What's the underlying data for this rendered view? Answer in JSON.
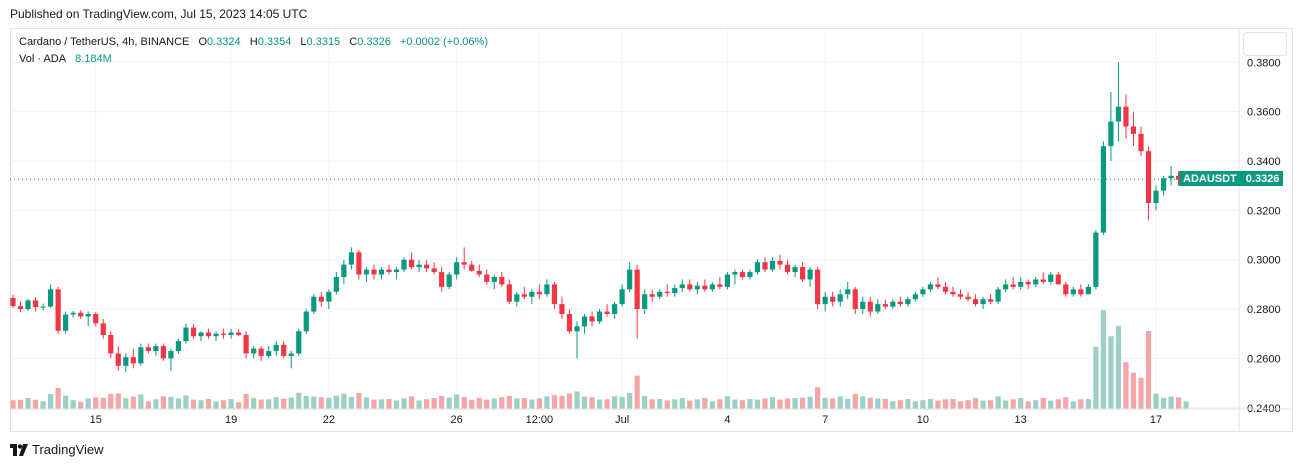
{
  "published": "Published on TradingView.com, Jul 15, 2023 14:05 UTC",
  "legend": {
    "symbol": "Cardano / TetherUS, 4h, BINANCE",
    "o_label": "O",
    "o_value": "0.3324",
    "h_label": "H",
    "h_value": "0.3354",
    "l_label": "L",
    "l_value": "0.3315",
    "c_label": "C",
    "c_value": "0.3326",
    "change": "+0.0002 (+0.06%)",
    "vol_label": "Vol · ADA",
    "vol_value": "8.184M"
  },
  "price_badge": {
    "ticker": "ADAUSDT",
    "price": "0.3326"
  },
  "brand": "TradingView",
  "colors": {
    "up": "#089981",
    "down": "#f23645",
    "up_volume": "#9bd0c6",
    "down_volume": "#f3a5a8",
    "grid": "#f0f3fa",
    "axis_text": "#131722"
  },
  "chart_data": {
    "type": "candlestick",
    "symbol": "ADAUSDT",
    "interval": "4h",
    "y_axis": {
      "ticks": [
        "0.2400",
        "0.2600",
        "0.2800",
        "0.3000",
        "0.3200",
        "0.3400",
        "0.3600",
        "0.3800"
      ],
      "range": [
        0.2395,
        0.3935
      ]
    },
    "x_axis": {
      "ticks": [
        {
          "label": "15",
          "index": 11
        },
        {
          "label": "19",
          "index": 29
        },
        {
          "label": "22",
          "index": 42
        },
        {
          "label": "26",
          "index": 59
        },
        {
          "label": "12:00",
          "index": 70
        },
        {
          "label": "Jul",
          "index": 81
        },
        {
          "label": "4",
          "index": 95
        },
        {
          "label": "7",
          "index": 108
        },
        {
          "label": "10",
          "index": 121
        },
        {
          "label": "13",
          "index": 134
        },
        {
          "label": "17",
          "index": 152
        }
      ],
      "bars_total": 153
    },
    "last_price": 0.3326,
    "candles_ohlc": [
      [
        0.2845,
        0.2858,
        0.2805,
        0.2812
      ],
      [
        0.2812,
        0.2832,
        0.2788,
        0.28
      ],
      [
        0.28,
        0.2842,
        0.2792,
        0.2835
      ],
      [
        0.2835,
        0.2848,
        0.279,
        0.2808
      ],
      [
        0.2808,
        0.2822,
        0.2795,
        0.281
      ],
      [
        0.281,
        0.29,
        0.2805,
        0.288
      ],
      [
        0.288,
        0.289,
        0.27,
        0.2712
      ],
      [
        0.2712,
        0.279,
        0.27,
        0.2778
      ],
      [
        0.2778,
        0.2792,
        0.2765,
        0.2785
      ],
      [
        0.2785,
        0.2795,
        0.276,
        0.277
      ],
      [
        0.277,
        0.279,
        0.273,
        0.278
      ],
      [
        0.278,
        0.2788,
        0.273,
        0.2742
      ],
      [
        0.2742,
        0.276,
        0.268,
        0.2695
      ],
      [
        0.2695,
        0.271,
        0.26,
        0.262
      ],
      [
        0.262,
        0.265,
        0.255,
        0.257
      ],
      [
        0.257,
        0.262,
        0.2545,
        0.2605
      ],
      [
        0.2605,
        0.264,
        0.256,
        0.258
      ],
      [
        0.258,
        0.266,
        0.257,
        0.2645
      ],
      [
        0.2645,
        0.266,
        0.262,
        0.263
      ],
      [
        0.263,
        0.266,
        0.261,
        0.265
      ],
      [
        0.265,
        0.266,
        0.259,
        0.26
      ],
      [
        0.26,
        0.264,
        0.255,
        0.263
      ],
      [
        0.263,
        0.268,
        0.262,
        0.267
      ],
      [
        0.267,
        0.274,
        0.266,
        0.2725
      ],
      [
        0.2725,
        0.274,
        0.268,
        0.269
      ],
      [
        0.269,
        0.271,
        0.267,
        0.2705
      ],
      [
        0.2705,
        0.272,
        0.268,
        0.269
      ],
      [
        0.269,
        0.271,
        0.267,
        0.27
      ],
      [
        0.27,
        0.272,
        0.268,
        0.2695
      ],
      [
        0.2695,
        0.272,
        0.268,
        0.2705
      ],
      [
        0.2705,
        0.272,
        0.269,
        0.2695
      ],
      [
        0.2695,
        0.271,
        0.26,
        0.262
      ],
      [
        0.262,
        0.265,
        0.26,
        0.264
      ],
      [
        0.264,
        0.265,
        0.259,
        0.261
      ],
      [
        0.261,
        0.265,
        0.26,
        0.263
      ],
      [
        0.263,
        0.267,
        0.261,
        0.2655
      ],
      [
        0.2655,
        0.267,
        0.26,
        0.261
      ],
      [
        0.261,
        0.263,
        0.256,
        0.262
      ],
      [
        0.262,
        0.272,
        0.261,
        0.271
      ],
      [
        0.271,
        0.28,
        0.27,
        0.279
      ],
      [
        0.279,
        0.286,
        0.278,
        0.285
      ],
      [
        0.285,
        0.287,
        0.281,
        0.283
      ],
      [
        0.283,
        0.288,
        0.28,
        0.287
      ],
      [
        0.287,
        0.295,
        0.286,
        0.293
      ],
      [
        0.293,
        0.3,
        0.29,
        0.298
      ],
      [
        0.298,
        0.305,
        0.296,
        0.303
      ],
      [
        0.303,
        0.304,
        0.292,
        0.294
      ],
      [
        0.294,
        0.297,
        0.291,
        0.296
      ],
      [
        0.296,
        0.298,
        0.292,
        0.294
      ],
      [
        0.294,
        0.297,
        0.292,
        0.296
      ],
      [
        0.296,
        0.298,
        0.294,
        0.295
      ],
      [
        0.295,
        0.297,
        0.292,
        0.296
      ],
      [
        0.296,
        0.301,
        0.295,
        0.3
      ],
      [
        0.3,
        0.303,
        0.296,
        0.297
      ],
      [
        0.297,
        0.3,
        0.295,
        0.298
      ],
      [
        0.298,
        0.3,
        0.295,
        0.2965
      ],
      [
        0.2965,
        0.299,
        0.294,
        0.295
      ],
      [
        0.295,
        0.297,
        0.287,
        0.289
      ],
      [
        0.289,
        0.295,
        0.288,
        0.294
      ],
      [
        0.294,
        0.301,
        0.292,
        0.299
      ],
      [
        0.299,
        0.305,
        0.296,
        0.298
      ],
      [
        0.298,
        0.2995,
        0.295,
        0.2955
      ],
      [
        0.2955,
        0.298,
        0.293,
        0.294
      ],
      [
        0.294,
        0.296,
        0.29,
        0.291
      ],
      [
        0.291,
        0.294,
        0.288,
        0.293
      ],
      [
        0.293,
        0.295,
        0.289,
        0.29
      ],
      [
        0.29,
        0.292,
        0.282,
        0.283
      ],
      [
        0.283,
        0.287,
        0.281,
        0.286
      ],
      [
        0.286,
        0.289,
        0.284,
        0.285
      ],
      [
        0.285,
        0.288,
        0.282,
        0.287
      ],
      [
        0.287,
        0.29,
        0.284,
        0.286
      ],
      [
        0.286,
        0.292,
        0.285,
        0.29
      ],
      [
        0.29,
        0.291,
        0.28,
        0.282
      ],
      [
        0.282,
        0.285,
        0.276,
        0.278
      ],
      [
        0.278,
        0.28,
        0.27,
        0.271
      ],
      [
        0.271,
        0.275,
        0.26,
        0.273
      ],
      [
        0.273,
        0.278,
        0.27,
        0.277
      ],
      [
        0.277,
        0.279,
        0.273,
        0.275
      ],
      [
        0.275,
        0.28,
        0.274,
        0.279
      ],
      [
        0.279,
        0.282,
        0.277,
        0.278
      ],
      [
        0.278,
        0.283,
        0.276,
        0.282
      ],
      [
        0.282,
        0.29,
        0.281,
        0.288
      ],
      [
        0.288,
        0.299,
        0.287,
        0.296
      ],
      [
        0.296,
        0.298,
        0.268,
        0.28
      ],
      [
        0.28,
        0.288,
        0.278,
        0.286
      ],
      [
        0.286,
        0.288,
        0.283,
        0.285
      ],
      [
        0.285,
        0.288,
        0.284,
        0.287
      ],
      [
        0.287,
        0.29,
        0.285,
        0.2865
      ],
      [
        0.2865,
        0.29,
        0.285,
        0.2885
      ],
      [
        0.2885,
        0.292,
        0.287,
        0.29
      ],
      [
        0.29,
        0.292,
        0.287,
        0.288
      ],
      [
        0.288,
        0.291,
        0.286,
        0.2895
      ],
      [
        0.2895,
        0.292,
        0.287,
        0.288
      ],
      [
        0.288,
        0.291,
        0.287,
        0.29
      ],
      [
        0.29,
        0.293,
        0.288,
        0.289
      ],
      [
        0.289,
        0.295,
        0.288,
        0.294
      ],
      [
        0.294,
        0.296,
        0.29,
        0.295
      ],
      [
        0.295,
        0.296,
        0.292,
        0.293
      ],
      [
        0.293,
        0.296,
        0.292,
        0.295
      ],
      [
        0.295,
        0.3,
        0.294,
        0.299
      ],
      [
        0.299,
        0.301,
        0.295,
        0.296
      ],
      [
        0.296,
        0.301,
        0.295,
        0.2995
      ],
      [
        0.2995,
        0.302,
        0.296,
        0.298
      ],
      [
        0.298,
        0.3,
        0.294,
        0.295
      ],
      [
        0.295,
        0.298,
        0.293,
        0.297
      ],
      [
        0.297,
        0.299,
        0.291,
        0.292
      ],
      [
        0.292,
        0.297,
        0.289,
        0.296
      ],
      [
        0.296,
        0.297,
        0.28,
        0.282
      ],
      [
        0.282,
        0.287,
        0.279,
        0.285
      ],
      [
        0.285,
        0.287,
        0.281,
        0.283
      ],
      [
        0.283,
        0.288,
        0.281,
        0.286
      ],
      [
        0.286,
        0.291,
        0.284,
        0.288
      ],
      [
        0.288,
        0.289,
        0.278,
        0.28
      ],
      [
        0.28,
        0.285,
        0.278,
        0.283
      ],
      [
        0.283,
        0.285,
        0.277,
        0.279
      ],
      [
        0.279,
        0.284,
        0.278,
        0.282
      ],
      [
        0.282,
        0.284,
        0.28,
        0.281
      ],
      [
        0.281,
        0.284,
        0.28,
        0.283
      ],
      [
        0.283,
        0.285,
        0.281,
        0.282
      ],
      [
        0.282,
        0.285,
        0.281,
        0.284
      ],
      [
        0.284,
        0.287,
        0.283,
        0.286
      ],
      [
        0.286,
        0.289,
        0.285,
        0.288
      ],
      [
        0.288,
        0.291,
        0.287,
        0.29
      ],
      [
        0.29,
        0.293,
        0.288,
        0.289
      ],
      [
        0.289,
        0.291,
        0.286,
        0.287
      ],
      [
        0.287,
        0.289,
        0.285,
        0.286
      ],
      [
        0.286,
        0.288,
        0.284,
        0.285
      ],
      [
        0.285,
        0.287,
        0.283,
        0.284
      ],
      [
        0.284,
        0.286,
        0.281,
        0.282
      ],
      [
        0.282,
        0.285,
        0.28,
        0.284
      ],
      [
        0.284,
        0.286,
        0.282,
        0.283
      ],
      [
        0.283,
        0.289,
        0.282,
        0.288
      ],
      [
        0.288,
        0.292,
        0.287,
        0.29
      ],
      [
        0.29,
        0.293,
        0.288,
        0.289
      ],
      [
        0.289,
        0.293,
        0.288,
        0.291
      ],
      [
        0.291,
        0.292,
        0.288,
        0.29
      ],
      [
        0.29,
        0.293,
        0.289,
        0.292
      ],
      [
        0.292,
        0.295,
        0.29,
        0.291
      ],
      [
        0.291,
        0.295,
        0.29,
        0.294
      ],
      [
        0.294,
        0.295,
        0.29,
        0.29
      ],
      [
        0.29,
        0.291,
        0.285,
        0.286
      ],
      [
        0.286,
        0.289,
        0.285,
        0.288
      ],
      [
        0.288,
        0.29,
        0.285,
        0.286
      ],
      [
        0.286,
        0.29,
        0.286,
        0.289
      ],
      [
        0.289,
        0.312,
        0.288,
        0.311
      ],
      [
        0.311,
        0.348,
        0.31,
        0.346
      ],
      [
        0.346,
        0.368,
        0.34,
        0.356
      ],
      [
        0.356,
        0.38,
        0.348,
        0.362
      ],
      [
        0.362,
        0.367,
        0.349,
        0.354
      ],
      [
        0.354,
        0.36,
        0.346,
        0.351
      ],
      [
        0.351,
        0.354,
        0.342,
        0.344
      ],
      [
        0.344,
        0.346,
        0.316,
        0.323
      ],
      [
        0.323,
        0.33,
        0.32,
        0.328
      ],
      [
        0.328,
        0.334,
        0.326,
        0.333
      ],
      [
        0.333,
        0.338,
        0.33,
        0.334
      ],
      [
        0.334,
        0.336,
        0.33,
        0.3324
      ],
      [
        0.3324,
        0.3354,
        0.3315,
        0.3326
      ]
    ]
  }
}
